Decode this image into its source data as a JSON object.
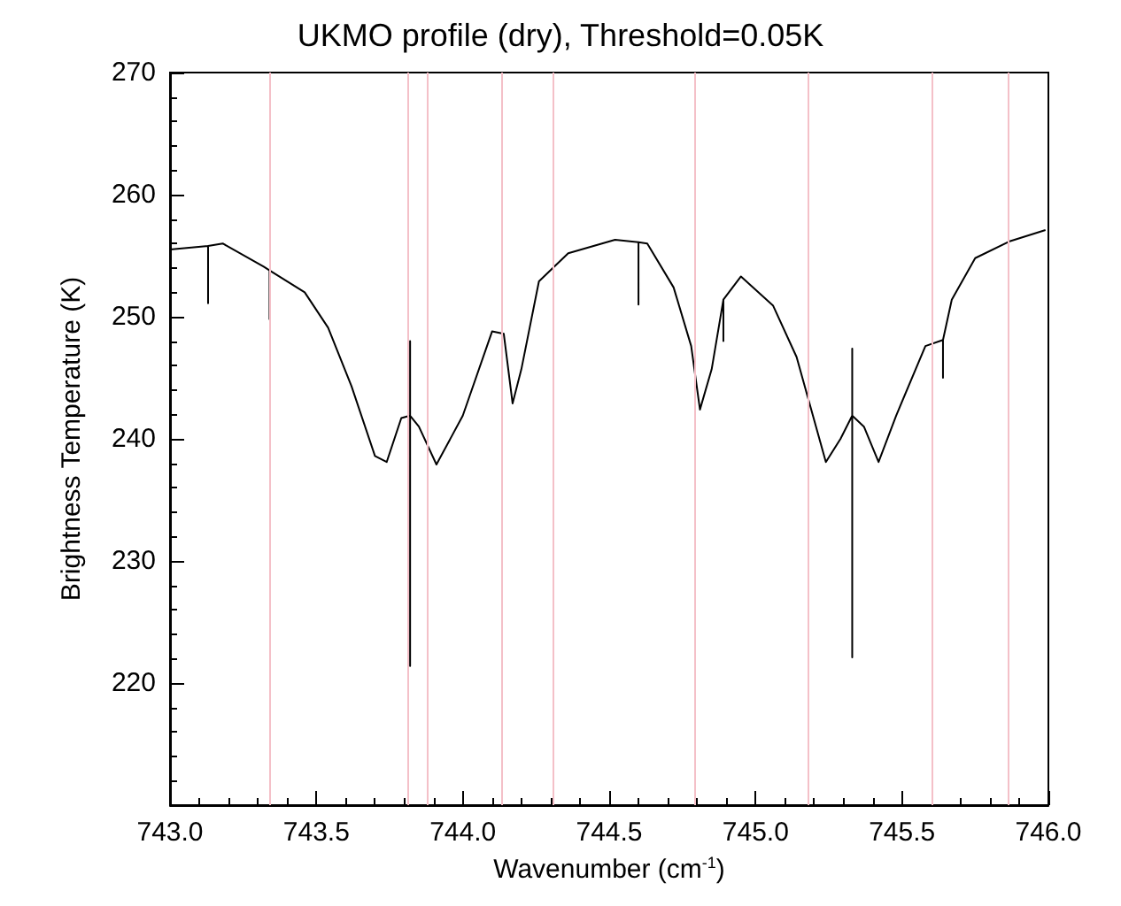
{
  "chart_data": {
    "type": "line",
    "title": "UKMO profile (dry), Threshold=0.05K",
    "xlabel": "Wavenumber (cm$^{-1}$)",
    "ylabel": "Brightness Temperature (K)",
    "xlim": [
      743.0,
      746.0
    ],
    "xticks": [
      {
        "value": 743.0,
        "label": "743.0"
      },
      {
        "value": 743.5,
        "label": "743.5"
      },
      {
        "value": 744.0,
        "label": "744.0"
      },
      {
        "value": 744.5,
        "label": "744.5"
      },
      {
        "value": 745.0,
        "label": "745.0"
      },
      {
        "value": 745.5,
        "label": "745.5"
      },
      {
        "value": 746.0,
        "label": "746.0"
      }
    ],
    "ylim": [
      210,
      270
    ],
    "yticks": [
      220,
      230,
      240,
      250,
      260,
      270
    ],
    "marker": "none",
    "line_style": "solid",
    "series": [
      {
        "color": "#000000",
        "x": [
          743.0,
          743.13,
          743.13,
          743.13,
          743.18,
          743.32,
          743.34,
          743.34,
          743.34,
          743.46,
          743.54,
          743.62,
          743.7,
          743.74,
          743.79,
          743.82,
          743.82,
          743.82,
          743.82,
          743.85,
          743.91,
          744.0,
          744.1,
          744.14,
          744.17,
          744.2,
          744.26,
          744.36,
          744.52,
          744.6,
          744.6,
          744.6,
          744.63,
          744.72,
          744.78,
          744.81,
          744.85,
          744.89,
          744.89,
          744.89,
          744.95,
          745.06,
          745.14,
          745.24,
          745.29,
          745.33,
          745.33,
          745.33,
          745.33,
          745.37,
          745.42,
          745.48,
          745.58,
          745.64,
          745.64,
          745.64,
          745.67,
          745.75,
          745.87,
          745.99
        ],
        "values": [
          255.5,
          255.8,
          251.1,
          255.8,
          256.0,
          254.1,
          253.8,
          249.8,
          253.8,
          252.0,
          249.1,
          244.3,
          238.6,
          238.1,
          241.7,
          241.9,
          248.0,
          221.4,
          241.9,
          241.0,
          237.9,
          241.9,
          248.8,
          248.6,
          242.9,
          245.7,
          252.9,
          255.2,
          256.3,
          256.1,
          251.0,
          256.1,
          256.0,
          252.4,
          247.6,
          242.4,
          245.7,
          251.4,
          248.0,
          251.4,
          253.3,
          250.9,
          246.7,
          238.1,
          240.0,
          241.9,
          247.4,
          222.1,
          241.9,
          241.0,
          238.1,
          241.9,
          247.6,
          248.1,
          245.0,
          248.1,
          251.4,
          254.8,
          256.2,
          257.1
        ]
      }
    ],
    "ref_lines": [
      {
        "axis": "x",
        "value": 743.34,
        "color": "#f4c0c8"
      },
      {
        "axis": "x",
        "value": 743.81,
        "color": "#f4c0c8"
      },
      {
        "axis": "x",
        "value": 743.88,
        "color": "#f4c0c8"
      },
      {
        "axis": "x",
        "value": 744.13,
        "color": "#f4c0c8"
      },
      {
        "axis": "x",
        "value": 744.31,
        "color": "#f4c0c8"
      },
      {
        "axis": "x",
        "value": 744.79,
        "color": "#f4c0c8"
      },
      {
        "axis": "x",
        "value": 745.18,
        "color": "#f4c0c8"
      },
      {
        "axis": "x",
        "value": 745.6,
        "color": "#f4c0c8"
      },
      {
        "axis": "x",
        "value": 745.86,
        "color": "#f4c0c8"
      }
    ]
  }
}
